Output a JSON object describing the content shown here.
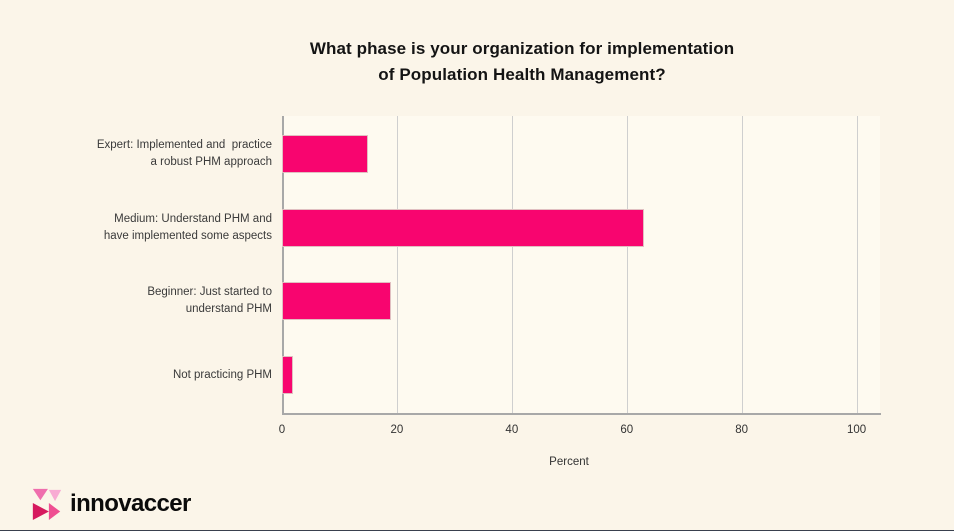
{
  "page": {
    "background_color": "#fbf5e9",
    "bottom_edge_color": "#39404e"
  },
  "title": {
    "line1": "What phase is your organization for implementation",
    "line2": "of Population Health Management?"
  },
  "chart_data": {
    "type": "bar",
    "orientation": "horizontal",
    "title": "What phase is your organization for implementation of Population Health Management?",
    "categories": [
      "Expert: Implemented and  practice a robust PHM approach",
      "Medium: Understand PHM and have implemented some aspects",
      "Beginner: Just started to understand PHM",
      "Not practicing PHM"
    ],
    "category_lines": [
      [
        "Expert: Implemented and  practice",
        "a robust PHM approach"
      ],
      [
        "Medium: Understand PHM and",
        "have implemented some aspects"
      ],
      [
        "Beginner: Just started to",
        "understand PHM"
      ],
      [
        "Not practicing PHM"
      ]
    ],
    "values": [
      15,
      63,
      19,
      2
    ],
    "xlabel": "Percent",
    "xticks": [
      0,
      20,
      40,
      60,
      80,
      100
    ],
    "xlim": [
      0,
      104
    ],
    "grid": "vertical",
    "legend": "none",
    "bar_color": "#f8056f",
    "gridline_color": "#cfcfcf",
    "axis_color": "#a8a8a8"
  },
  "logo": {
    "text": "innovaccer",
    "icon": "innovaccer-triangles-logo",
    "icon_colors": {
      "medium_pink": "#ef6ead",
      "light_pink": "#f8abd3",
      "dark_magenta": "#d6195e",
      "accent_pink": "#ef4f92"
    }
  }
}
